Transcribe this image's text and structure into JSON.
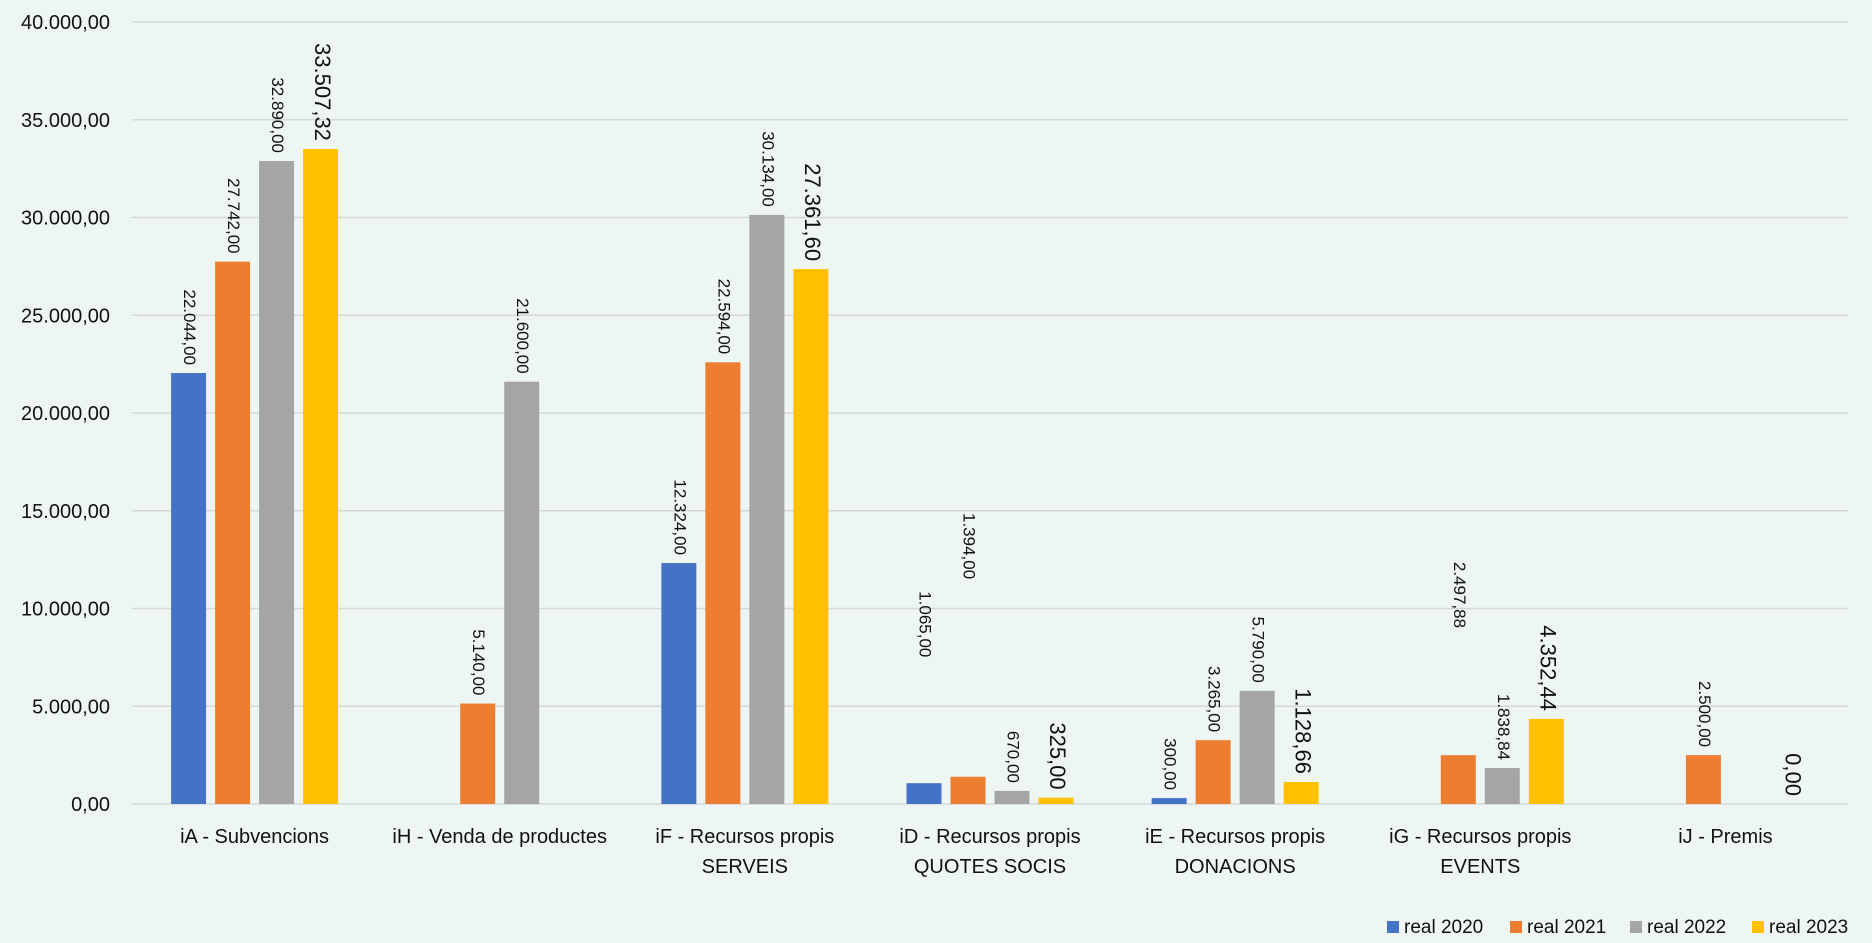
{
  "chart_data": {
    "type": "bar",
    "categories": [
      [
        "iA - Subvencions"
      ],
      [
        "iH - Venda de productes"
      ],
      [
        "iF - Recursos propis",
        "SERVEIS"
      ],
      [
        "iD - Recursos propis",
        "QUOTES SOCIS"
      ],
      [
        "iE - Recursos propis",
        "DONACIONS"
      ],
      [
        "iG - Recursos propis",
        "EVENTS"
      ],
      [
        "iJ - Premis"
      ]
    ],
    "series": [
      {
        "name": "real 2020",
        "color": "#4472c4",
        "values": [
          22044.0,
          null,
          12324.0,
          1065.0,
          300.0,
          null,
          null
        ],
        "labels": [
          "22.044,00",
          "",
          "12.324,00",
          "1.065,00",
          "300,00",
          "",
          ""
        ]
      },
      {
        "name": "real 2021",
        "color": "#ed7d31",
        "values": [
          27742.0,
          5140.0,
          22594.0,
          1394.0,
          3265.0,
          2497.88,
          2500.0
        ],
        "labels": [
          "27.742,00",
          "5.140,00",
          "22.594,00",
          "1.394,00",
          "3.265,00",
          "2.497,88",
          "2.500,00"
        ]
      },
      {
        "name": "real 2022",
        "color": "#a5a5a5",
        "values": [
          32890.0,
          21600.0,
          30134.0,
          670.0,
          5790.0,
          1838.84,
          null
        ],
        "labels": [
          "32.890,00",
          "21.600,00",
          "30.134,00",
          "670,00",
          "5.790,00",
          "1.838,84",
          ""
        ]
      },
      {
        "name": "real 2023",
        "color": "#ffc000",
        "values": [
          33507.32,
          null,
          27361.6,
          325.0,
          1128.66,
          4352.44,
          0
        ],
        "labels": [
          "33.507,32",
          "",
          "27.361,60",
          "325,00",
          "1.128,66",
          "4.352,44",
          "0,00"
        ]
      }
    ],
    "ylim": [
      0,
      40000
    ],
    "yticks": [
      {
        "value": 0,
        "label": "0,00"
      },
      {
        "value": 5000,
        "label": "5.000,00"
      },
      {
        "value": 10000,
        "label": "10.000,00"
      },
      {
        "value": 15000,
        "label": "15.000,00"
      },
      {
        "value": 20000,
        "label": "20.000,00"
      },
      {
        "value": 25000,
        "label": "25.000,00"
      },
      {
        "value": 30000,
        "label": "30.000,00"
      },
      {
        "value": 35000,
        "label": "35.000,00"
      },
      {
        "value": 40000,
        "label": "40.000,00"
      }
    ],
    "grid": true,
    "gridColor": "#d4d8d8",
    "legend_position": "bottom-right"
  }
}
